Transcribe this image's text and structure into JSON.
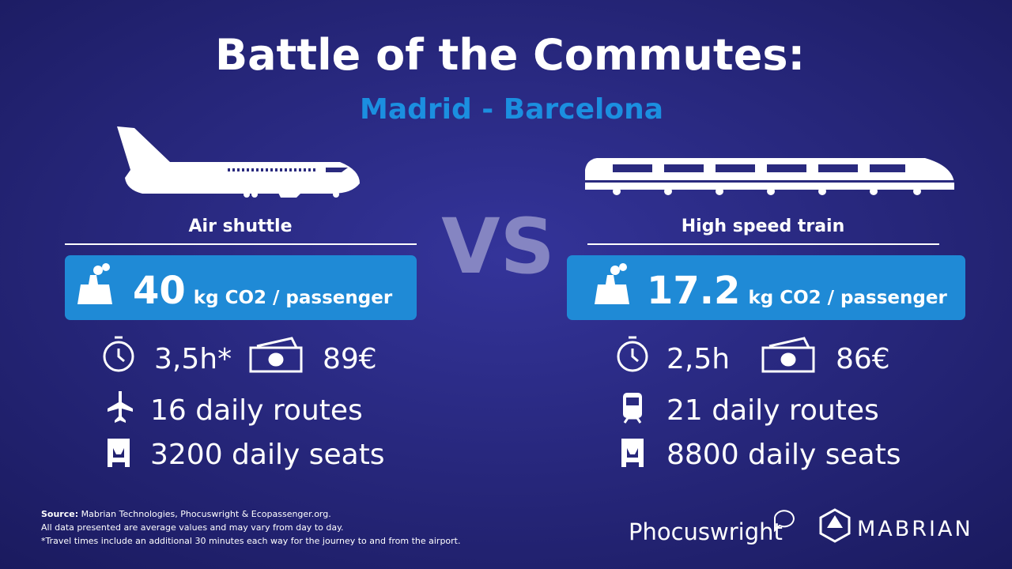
{
  "title": "Battle of the Commutes:",
  "subtitle": "Madrid - Barcelona",
  "vs": "VS",
  "modes": [
    {
      "name": "Air shuttle",
      "co2_value": "40",
      "co2_unit": "kg CO2 / passenger",
      "time": "3,5h*",
      "price": "89€",
      "routes": "16 daily routes",
      "seats": "3200 daily seats"
    },
    {
      "name": "High speed train",
      "co2_value": "17.2",
      "co2_unit": "kg CO2 / passenger",
      "time": "2,5h",
      "price": "86€",
      "routes": "21 daily routes",
      "seats": "8800 daily seats"
    }
  ],
  "footer": {
    "source_label": "Source:",
    "source": "Mabrian Technologies,  Phocuswright & Ecopassenger.org.",
    "note1": "All data presented are average values and may vary from day to day.",
    "note2": "*Travel times include an additional 30 minutes each way for the journey to and from the airport."
  },
  "logos": {
    "phocuswright": "Phocuswright",
    "mabrian": "MABRIAN"
  }
}
